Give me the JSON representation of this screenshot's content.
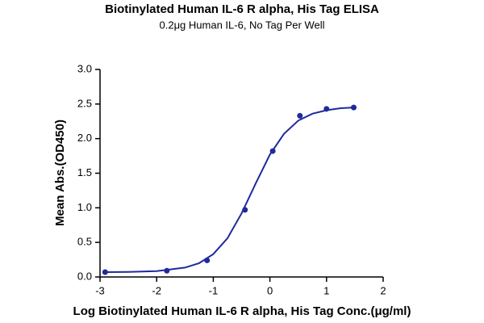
{
  "chart_data": {
    "type": "scatter",
    "title": "Biotinylated Human IL-6 R alpha, His Tag ELISA",
    "subtitle": "0.2μg Human IL-6, No Tag Per Well",
    "x_label": "Log Biotinylated Human IL-6 R alpha, His Tag Conc.(μg/ml)",
    "y_label": "Mean Abs.(OD450)",
    "color": "#1f2a9c",
    "x": [
      -2.91,
      -1.82,
      -1.11,
      -0.44,
      0.05,
      0.53,
      1.0,
      1.48
    ],
    "values": [
      0.07,
      0.09,
      0.24,
      0.97,
      1.82,
      2.33,
      2.43,
      2.45
    ],
    "curve": {
      "x": [
        -2.91,
        -2.5,
        -2,
        -1.5,
        -1.25,
        -1,
        -0.75,
        -0.5,
        -0.25,
        0,
        0.25,
        0.5,
        0.75,
        1,
        1.25,
        1.48
      ],
      "values": [
        0.07,
        0.073,
        0.085,
        0.135,
        0.2,
        0.33,
        0.56,
        0.92,
        1.355,
        1.77,
        2.07,
        2.26,
        2.36,
        2.41,
        2.44,
        2.45
      ]
    },
    "xlim": [
      -3,
      2
    ],
    "xticks": [
      -3,
      -2,
      -1,
      0,
      1,
      2
    ],
    "ylim": [
      0,
      3
    ],
    "yticks": [
      {
        "value": 0,
        "label": "0.0"
      },
      {
        "value": 0.5,
        "label": "0.5"
      },
      {
        "value": 1,
        "label": "1.0"
      },
      {
        "value": 1.5,
        "label": "1.5"
      },
      {
        "value": 2,
        "label": "2.0"
      },
      {
        "value": 2.5,
        "label": "2.5"
      },
      {
        "value": 3,
        "label": "3.0"
      }
    ]
  }
}
